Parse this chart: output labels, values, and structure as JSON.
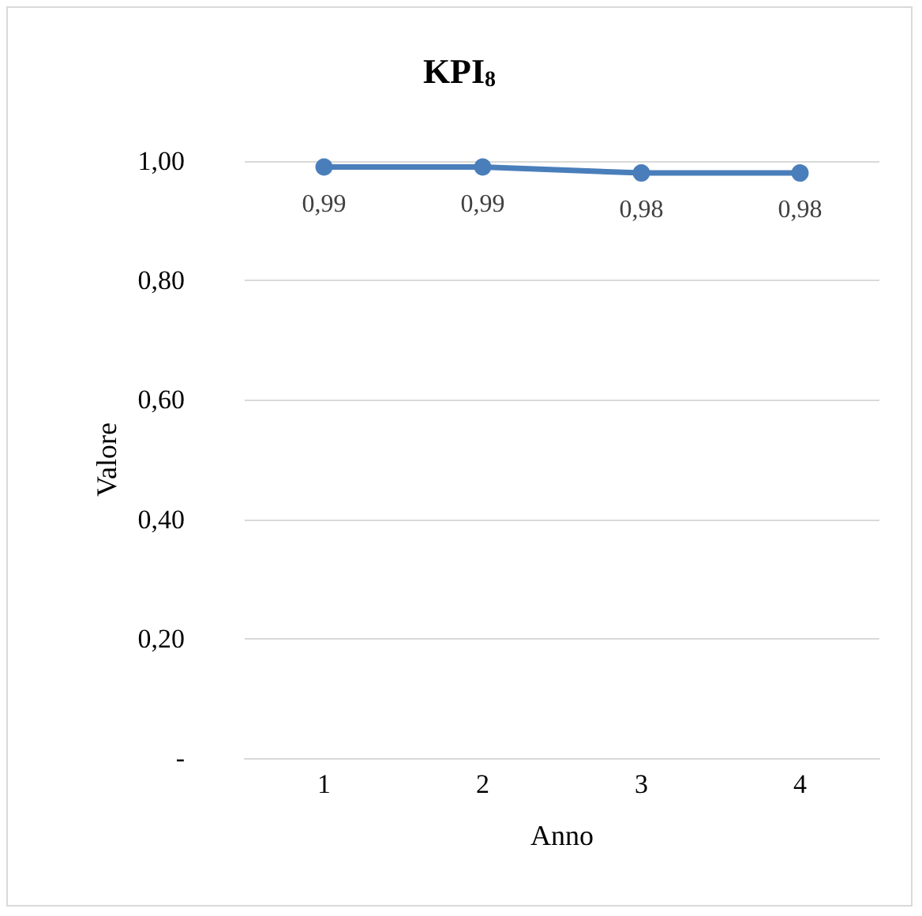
{
  "chart_data": {
    "type": "line",
    "title": "KPI$_{8}$",
    "xlabel": "Anno",
    "ylabel": "Valore",
    "categories": [
      "1",
      "2",
      "3",
      "4"
    ],
    "series": [
      {
        "color": "#4a7ebb",
        "values": [
          0.99,
          0.99,
          0.98,
          0.98
        ],
        "value_labels": [
          "0,99",
          "0,99",
          "0,98",
          "0,98"
        ]
      }
    ],
    "ylim": [
      0,
      1
    ],
    "yticks": [
      {
        "value": 0,
        "label": "-"
      },
      {
        "value": 0.2,
        "label": "0,20"
      },
      {
        "value": 0.4,
        "label": "0,40"
      },
      {
        "value": 0.6,
        "label": "0,60"
      },
      {
        "value": 0.8,
        "label": "0,80"
      },
      {
        "value": 1,
        "label": "1,00"
      }
    ],
    "grid": "y",
    "marker": "circle",
    "line_style": "solid"
  }
}
